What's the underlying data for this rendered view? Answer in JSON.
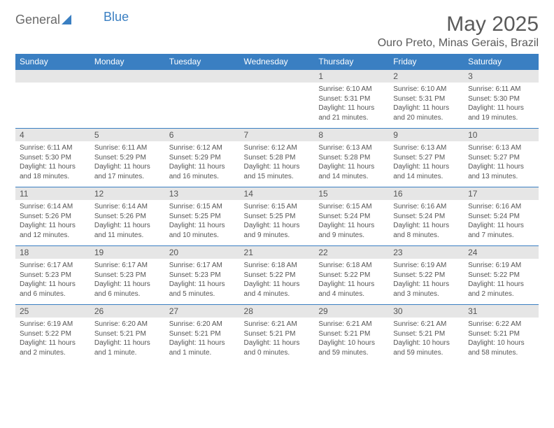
{
  "logo": {
    "word1": "General",
    "word2": "Blue"
  },
  "title": "May 2025",
  "location": "Ouro Preto, Minas Gerais, Brazil",
  "colors": {
    "header_bg": "#3a7fc2",
    "header_text": "#ffffff",
    "dayrow_bg": "#e6e6e6",
    "border": "#3a7fc2",
    "text": "#555555",
    "logo_gray": "#6a6a6a",
    "logo_blue": "#3a7fc2",
    "title_color": "#5a5a5a"
  },
  "day_headers": [
    "Sunday",
    "Monday",
    "Tuesday",
    "Wednesday",
    "Thursday",
    "Friday",
    "Saturday"
  ],
  "weeks": [
    {
      "nums": [
        "",
        "",
        "",
        "",
        "1",
        "2",
        "3"
      ],
      "cells": [
        null,
        null,
        null,
        null,
        {
          "sunrise": "Sunrise: 6:10 AM",
          "sunset": "Sunset: 5:31 PM",
          "day1": "Daylight: 11 hours",
          "day2": "and 21 minutes."
        },
        {
          "sunrise": "Sunrise: 6:10 AM",
          "sunset": "Sunset: 5:31 PM",
          "day1": "Daylight: 11 hours",
          "day2": "and 20 minutes."
        },
        {
          "sunrise": "Sunrise: 6:11 AM",
          "sunset": "Sunset: 5:30 PM",
          "day1": "Daylight: 11 hours",
          "day2": "and 19 minutes."
        }
      ]
    },
    {
      "nums": [
        "4",
        "5",
        "6",
        "7",
        "8",
        "9",
        "10"
      ],
      "cells": [
        {
          "sunrise": "Sunrise: 6:11 AM",
          "sunset": "Sunset: 5:30 PM",
          "day1": "Daylight: 11 hours",
          "day2": "and 18 minutes."
        },
        {
          "sunrise": "Sunrise: 6:11 AM",
          "sunset": "Sunset: 5:29 PM",
          "day1": "Daylight: 11 hours",
          "day2": "and 17 minutes."
        },
        {
          "sunrise": "Sunrise: 6:12 AM",
          "sunset": "Sunset: 5:29 PM",
          "day1": "Daylight: 11 hours",
          "day2": "and 16 minutes."
        },
        {
          "sunrise": "Sunrise: 6:12 AM",
          "sunset": "Sunset: 5:28 PM",
          "day1": "Daylight: 11 hours",
          "day2": "and 15 minutes."
        },
        {
          "sunrise": "Sunrise: 6:13 AM",
          "sunset": "Sunset: 5:28 PM",
          "day1": "Daylight: 11 hours",
          "day2": "and 14 minutes."
        },
        {
          "sunrise": "Sunrise: 6:13 AM",
          "sunset": "Sunset: 5:27 PM",
          "day1": "Daylight: 11 hours",
          "day2": "and 14 minutes."
        },
        {
          "sunrise": "Sunrise: 6:13 AM",
          "sunset": "Sunset: 5:27 PM",
          "day1": "Daylight: 11 hours",
          "day2": "and 13 minutes."
        }
      ]
    },
    {
      "nums": [
        "11",
        "12",
        "13",
        "14",
        "15",
        "16",
        "17"
      ],
      "cells": [
        {
          "sunrise": "Sunrise: 6:14 AM",
          "sunset": "Sunset: 5:26 PM",
          "day1": "Daylight: 11 hours",
          "day2": "and 12 minutes."
        },
        {
          "sunrise": "Sunrise: 6:14 AM",
          "sunset": "Sunset: 5:26 PM",
          "day1": "Daylight: 11 hours",
          "day2": "and 11 minutes."
        },
        {
          "sunrise": "Sunrise: 6:15 AM",
          "sunset": "Sunset: 5:25 PM",
          "day1": "Daylight: 11 hours",
          "day2": "and 10 minutes."
        },
        {
          "sunrise": "Sunrise: 6:15 AM",
          "sunset": "Sunset: 5:25 PM",
          "day1": "Daylight: 11 hours",
          "day2": "and 9 minutes."
        },
        {
          "sunrise": "Sunrise: 6:15 AM",
          "sunset": "Sunset: 5:24 PM",
          "day1": "Daylight: 11 hours",
          "day2": "and 9 minutes."
        },
        {
          "sunrise": "Sunrise: 6:16 AM",
          "sunset": "Sunset: 5:24 PM",
          "day1": "Daylight: 11 hours",
          "day2": "and 8 minutes."
        },
        {
          "sunrise": "Sunrise: 6:16 AM",
          "sunset": "Sunset: 5:24 PM",
          "day1": "Daylight: 11 hours",
          "day2": "and 7 minutes."
        }
      ]
    },
    {
      "nums": [
        "18",
        "19",
        "20",
        "21",
        "22",
        "23",
        "24"
      ],
      "cells": [
        {
          "sunrise": "Sunrise: 6:17 AM",
          "sunset": "Sunset: 5:23 PM",
          "day1": "Daylight: 11 hours",
          "day2": "and 6 minutes."
        },
        {
          "sunrise": "Sunrise: 6:17 AM",
          "sunset": "Sunset: 5:23 PM",
          "day1": "Daylight: 11 hours",
          "day2": "and 6 minutes."
        },
        {
          "sunrise": "Sunrise: 6:17 AM",
          "sunset": "Sunset: 5:23 PM",
          "day1": "Daylight: 11 hours",
          "day2": "and 5 minutes."
        },
        {
          "sunrise": "Sunrise: 6:18 AM",
          "sunset": "Sunset: 5:22 PM",
          "day1": "Daylight: 11 hours",
          "day2": "and 4 minutes."
        },
        {
          "sunrise": "Sunrise: 6:18 AM",
          "sunset": "Sunset: 5:22 PM",
          "day1": "Daylight: 11 hours",
          "day2": "and 4 minutes."
        },
        {
          "sunrise": "Sunrise: 6:19 AM",
          "sunset": "Sunset: 5:22 PM",
          "day1": "Daylight: 11 hours",
          "day2": "and 3 minutes."
        },
        {
          "sunrise": "Sunrise: 6:19 AM",
          "sunset": "Sunset: 5:22 PM",
          "day1": "Daylight: 11 hours",
          "day2": "and 2 minutes."
        }
      ]
    },
    {
      "nums": [
        "25",
        "26",
        "27",
        "28",
        "29",
        "30",
        "31"
      ],
      "cells": [
        {
          "sunrise": "Sunrise: 6:19 AM",
          "sunset": "Sunset: 5:22 PM",
          "day1": "Daylight: 11 hours",
          "day2": "and 2 minutes."
        },
        {
          "sunrise": "Sunrise: 6:20 AM",
          "sunset": "Sunset: 5:21 PM",
          "day1": "Daylight: 11 hours",
          "day2": "and 1 minute."
        },
        {
          "sunrise": "Sunrise: 6:20 AM",
          "sunset": "Sunset: 5:21 PM",
          "day1": "Daylight: 11 hours",
          "day2": "and 1 minute."
        },
        {
          "sunrise": "Sunrise: 6:21 AM",
          "sunset": "Sunset: 5:21 PM",
          "day1": "Daylight: 11 hours",
          "day2": "and 0 minutes."
        },
        {
          "sunrise": "Sunrise: 6:21 AM",
          "sunset": "Sunset: 5:21 PM",
          "day1": "Daylight: 10 hours",
          "day2": "and 59 minutes."
        },
        {
          "sunrise": "Sunrise: 6:21 AM",
          "sunset": "Sunset: 5:21 PM",
          "day1": "Daylight: 10 hours",
          "day2": "and 59 minutes."
        },
        {
          "sunrise": "Sunrise: 6:22 AM",
          "sunset": "Sunset: 5:21 PM",
          "day1": "Daylight: 10 hours",
          "day2": "and 58 minutes."
        }
      ]
    }
  ]
}
